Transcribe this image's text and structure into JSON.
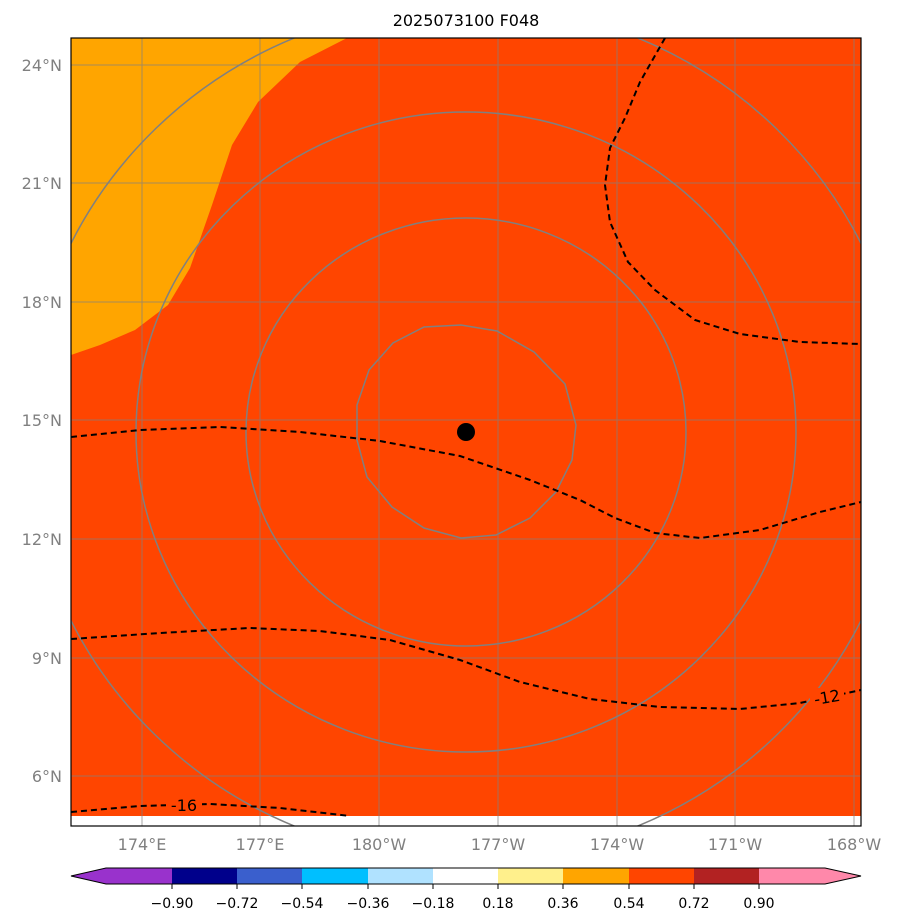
{
  "title": "2025073100 F048",
  "map": {
    "lat_range": [
      4.9,
      24.7
    ],
    "lon_range_east": [
      172.2,
      192.2
    ],
    "lat_ticks": [
      "6°N",
      "9°N",
      "12°N",
      "15°N",
      "18°N",
      "21°N",
      "24°N"
    ],
    "lon_ticks": [
      "174°E",
      "177°E",
      "180°W",
      "177°W",
      "174°W",
      "171°W",
      "168°W"
    ],
    "center_marker": {
      "lat": 14.7,
      "lon_east": 182.7
    },
    "contour_labels": [
      "-12",
      "-16"
    ],
    "fill_colors": {
      "0.36-0.54": "#ffa500",
      "0.54-0.72": "#ff4500"
    },
    "colorbar": {
      "ticks": [
        "−0.90",
        "−0.72",
        "−0.54",
        "−0.36",
        "−0.18",
        "0.18",
        "0.36",
        "0.54",
        "0.72",
        "0.90"
      ],
      "colors": [
        "#9932cc",
        "#9932cc",
        "#00008b",
        "#3a5fcd",
        "#00bfff",
        "#b0e2ff",
        "#ffffff",
        "#fff08c",
        "#ffa500",
        "#ff4500",
        "#b22222",
        "#ff88aa",
        "#ff88aa"
      ]
    }
  }
}
